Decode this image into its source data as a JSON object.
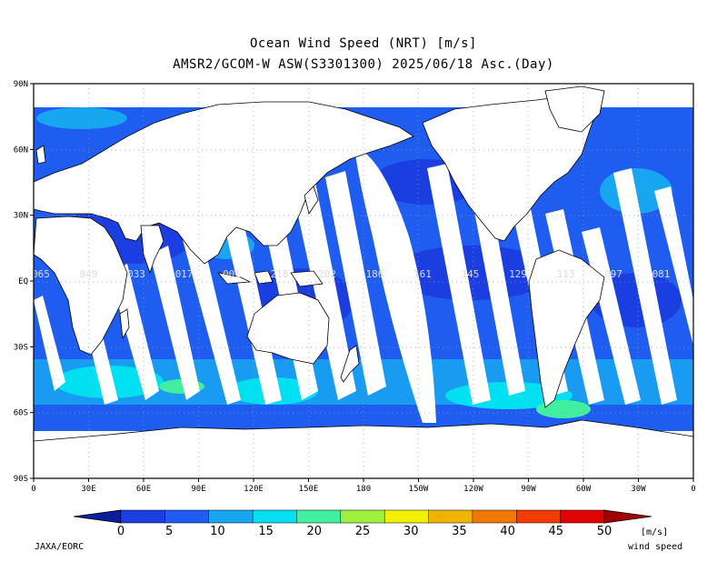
{
  "title": {
    "line1": "Ocean Wind Speed (NRT) [m/s]",
    "line2": "AMSR2/GCOM-W ASW(S3301300) 2025/06/18 Asc.(Day)"
  },
  "map": {
    "lat_labels": [
      "90N",
      "60N",
      "30N",
      "EQ",
      "30S",
      "60S",
      "90S"
    ],
    "lon_labels": [
      "0",
      "30E",
      "60E",
      "90E",
      "120E",
      "150E",
      "180",
      "150W",
      "120W",
      "90W",
      "60W",
      "30W",
      "0"
    ],
    "orbit_labels": [
      "065",
      "049",
      "033",
      "017",
      "001",
      "218",
      "202",
      "186",
      "161",
      "145",
      "129",
      "113",
      "097",
      "081"
    ]
  },
  "colorbar": {
    "ticks": [
      "0",
      "5",
      "10",
      "15",
      "20",
      "25",
      "30",
      "35",
      "40",
      "45",
      "50"
    ],
    "colors": [
      "#1a3ee0",
      "#1f5cf0",
      "#18a6f0",
      "#00e0f0",
      "#40f0a0",
      "#a0f040",
      "#f0f000",
      "#f0b400",
      "#f07800",
      "#f03c00",
      "#e00000"
    ],
    "under_color": "#0a1ea0",
    "over_color": "#a00000",
    "units": "[m/s]",
    "units_label": "wind speed"
  },
  "credit": "JAXA/EORC",
  "colors": {
    "ocean_dark": "#1a3ee0",
    "ocean_mid": "#1f5cf0",
    "ocean_light": "#18a6f0",
    "ocean_cyan": "#00e0f0",
    "land": "#ffffff"
  }
}
